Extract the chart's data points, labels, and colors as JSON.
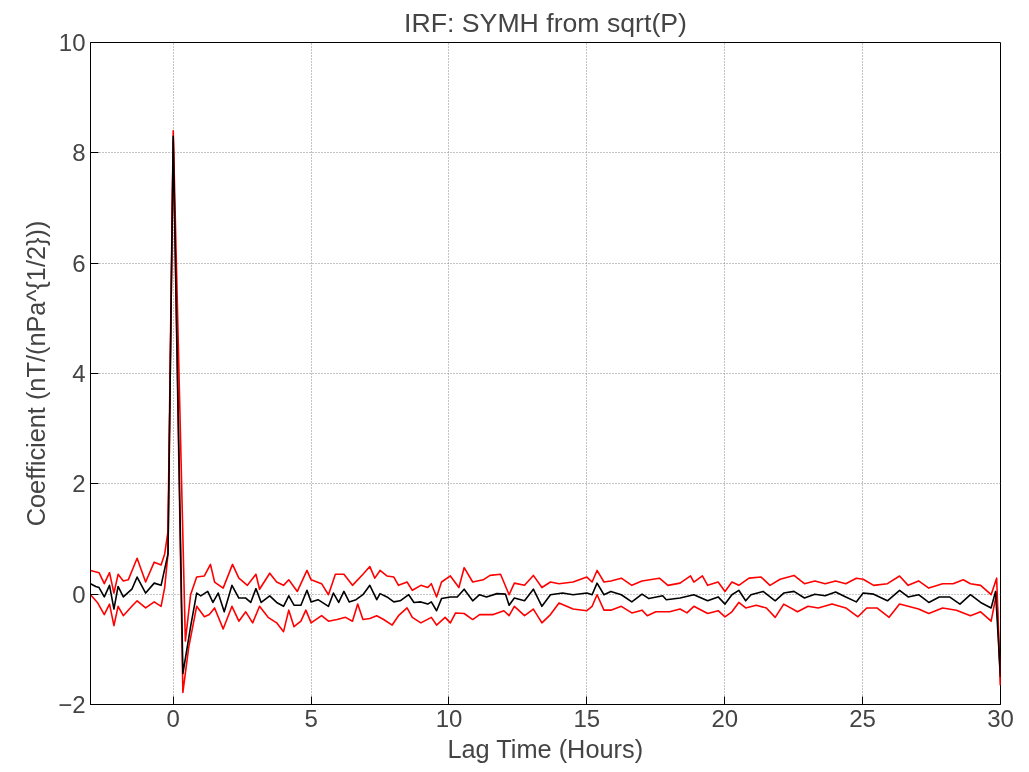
{
  "chart_data": {
    "type": "line",
    "title": "IRF: SYMH from sqrt(P)",
    "xlabel": "Lag Time (Hours)",
    "ylabel": "Coefficient (nT/(nPa^{1/2}))",
    "xlim": [
      -3,
      30
    ],
    "xticks": [
      0,
      5,
      10,
      15,
      20,
      25,
      30
    ],
    "ylim": [
      -2,
      10
    ],
    "yticks": [
      -2,
      0,
      2,
      4,
      6,
      8,
      10
    ],
    "grid": true,
    "marker": "none",
    "line_style": "solid",
    "series": [
      {
        "color": "#ff0000",
        "x": [
          -3,
          -2.69,
          -2.5,
          -2.31,
          -2.15,
          -2.0,
          -1.81,
          -1.63,
          -1.31,
          -1.0,
          -0.69,
          -0.44,
          -0.31,
          -0.19,
          0,
          0.44,
          0.63,
          0.85,
          1.13,
          1.35,
          1.5,
          1.81,
          2.15,
          2.38,
          2.69,
          3.0,
          3.13,
          3.5,
          3.75,
          4.0,
          4.19,
          4.5,
          4.85,
          5.0,
          5.38,
          5.63,
          5.88,
          6.19,
          6.5,
          6.88,
          7.13,
          7.31,
          7.5,
          7.75,
          8.0,
          8.17,
          8.48,
          8.67,
          8.98,
          9.23,
          9.36,
          9.55,
          9.73,
          10.05,
          10.36,
          10.55,
          10.86,
          11.24,
          11.49,
          11.87,
          12.18,
          12.37,
          12.74,
          13.06,
          13.37,
          13.68,
          13.99,
          14.5,
          15.0,
          15.19,
          15.37,
          15.62,
          15.87,
          16.25,
          16.63,
          17.0,
          17.63,
          17.94,
          18.38,
          18.76,
          18.88,
          19.19,
          19.38,
          19.76,
          20.01,
          20.26,
          20.51,
          20.88,
          21.32,
          21.64,
          22.01,
          22.51,
          22.89,
          23.27,
          23.64,
          24.02,
          24.39,
          24.77,
          25.02,
          25.4,
          25.9,
          26.34,
          26.65,
          27.03,
          27.4,
          27.9,
          28.28,
          28.65,
          28.91,
          29.28,
          29.66,
          29.86,
          30.0
        ],
        "values": [
          0.43,
          0.39,
          0.19,
          0.39,
          0.02,
          0.36,
          0.24,
          0.26,
          0.65,
          0.22,
          0.58,
          0.53,
          0.73,
          1.14,
          8.4,
          -0.85,
          -0.01,
          0.31,
          0.33,
          0.54,
          0.22,
          0.11,
          0.54,
          0.29,
          0.16,
          0.36,
          0.09,
          0.38,
          0.22,
          0.16,
          0.26,
          0.05,
          0.43,
          0.26,
          0.19,
          -0.01,
          0.36,
          0.36,
          0.16,
          0.36,
          0.5,
          0.29,
          0.43,
          0.33,
          0.31,
          0.16,
          0.22,
          0.07,
          0.16,
          0.12,
          0.19,
          -0.05,
          0.22,
          0.33,
          0.12,
          0.48,
          0.22,
          0.26,
          0.34,
          0.36,
          -0.01,
          0.2,
          0.16,
          0.34,
          0.12,
          0.22,
          0.19,
          0.22,
          0.31,
          0.22,
          0.43,
          0.22,
          0.24,
          0.29,
          0.16,
          0.24,
          0.29,
          0.16,
          0.2,
          0.33,
          0.22,
          0.33,
          0.16,
          0.22,
          0.05,
          0.22,
          0.16,
          0.29,
          0.31,
          0.16,
          0.27,
          0.34,
          0.19,
          0.24,
          0.19,
          0.24,
          0.19,
          0.29,
          0.27,
          0.16,
          0.19,
          0.33,
          0.16,
          0.24,
          0.11,
          0.19,
          0.19,
          0.26,
          0.19,
          0.16,
          -0.01,
          0.29,
          -1.65
        ]
      },
      {
        "color": "#ff0000",
        "x": [
          -3,
          -2.75,
          -2.5,
          -2.31,
          -2.15,
          -2.0,
          -1.81,
          -1.5,
          -1.31,
          -1.0,
          -0.69,
          -0.44,
          -0.31,
          -0.19,
          0,
          0.35,
          0.56,
          0.85,
          1.13,
          1.31,
          1.5,
          1.81,
          2.13,
          2.38,
          2.63,
          2.88,
          3.13,
          3.44,
          3.75,
          4.0,
          4.19,
          4.38,
          4.63,
          4.81,
          5.0,
          5.38,
          5.63,
          5.94,
          6.25,
          6.5,
          6.69,
          6.88,
          7.13,
          7.38,
          7.63,
          7.94,
          8.17,
          8.48,
          8.67,
          8.98,
          9.36,
          9.55,
          9.86,
          10.05,
          10.24,
          10.55,
          10.86,
          11.11,
          11.61,
          11.99,
          12.18,
          12.37,
          12.74,
          13.06,
          13.37,
          13.68,
          13.99,
          14.5,
          15.0,
          15.19,
          15.37,
          15.62,
          15.87,
          16.25,
          16.63,
          17.0,
          17.19,
          17.5,
          18.0,
          18.38,
          18.63,
          18.88,
          19.38,
          19.76,
          20.01,
          20.26,
          20.51,
          20.76,
          21.14,
          21.51,
          21.83,
          22.14,
          22.64,
          23.02,
          23.39,
          23.89,
          24.39,
          24.83,
          25.15,
          25.52,
          25.96,
          26.34,
          26.65,
          27.03,
          27.4,
          27.9,
          28.4,
          28.91,
          29.28,
          29.66,
          29.86,
          30.0
        ],
        "values": [
          -0.01,
          -0.15,
          -0.37,
          -0.18,
          -0.57,
          -0.22,
          -0.39,
          -0.22,
          -0.12,
          -0.25,
          -0.14,
          -0.22,
          0.12,
          0.73,
          8.2,
          -1.78,
          -0.97,
          -0.22,
          -0.41,
          -0.37,
          -0.25,
          -0.63,
          -0.22,
          -0.49,
          -0.32,
          -0.52,
          -0.22,
          -0.42,
          -0.52,
          -0.68,
          -0.29,
          -0.59,
          -0.49,
          -0.29,
          -0.52,
          -0.39,
          -0.49,
          -0.46,
          -0.42,
          -0.49,
          -0.18,
          -0.46,
          -0.44,
          -0.39,
          -0.46,
          -0.56,
          -0.39,
          -0.25,
          -0.42,
          -0.52,
          -0.42,
          -0.56,
          -0.42,
          -0.52,
          -0.34,
          -0.35,
          -0.46,
          -0.37,
          -0.37,
          -0.3,
          -0.39,
          -0.22,
          -0.39,
          -0.27,
          -0.52,
          -0.37,
          -0.16,
          -0.27,
          -0.3,
          -0.22,
          -0.01,
          -0.29,
          -0.29,
          -0.22,
          -0.34,
          -0.29,
          -0.39,
          -0.32,
          -0.32,
          -0.27,
          -0.34,
          -0.22,
          -0.35,
          -0.3,
          -0.41,
          -0.32,
          -0.15,
          -0.25,
          -0.2,
          -0.25,
          -0.42,
          -0.18,
          -0.32,
          -0.22,
          -0.25,
          -0.18,
          -0.25,
          -0.41,
          -0.25,
          -0.25,
          -0.42,
          -0.18,
          -0.22,
          -0.27,
          -0.35,
          -0.25,
          -0.29,
          -0.39,
          -0.32,
          -0.49,
          0.02,
          -1.65
        ]
      },
      {
        "color": "#000000",
        "x": [
          -3,
          -2.81,
          -2.69,
          -2.5,
          -2.31,
          -2.15,
          -2.0,
          -1.81,
          -1.5,
          -1.31,
          -1.0,
          -0.69,
          -0.44,
          -0.19,
          0,
          0.35,
          0.63,
          0.85,
          1.0,
          1.25,
          1.44,
          1.63,
          1.85,
          2.13,
          2.38,
          2.63,
          2.81,
          3.0,
          3.19,
          3.5,
          3.75,
          4.0,
          4.19,
          4.38,
          4.63,
          4.85,
          5.0,
          5.25,
          5.63,
          5.81,
          6.0,
          6.19,
          6.38,
          6.63,
          6.88,
          7.13,
          7.38,
          7.5,
          7.75,
          8.0,
          8.23,
          8.54,
          8.73,
          8.98,
          9.23,
          9.36,
          9.55,
          9.73,
          10.05,
          10.3,
          10.55,
          10.86,
          11.11,
          11.36,
          11.74,
          12.05,
          12.18,
          12.37,
          12.74,
          13.06,
          13.37,
          13.68,
          14.12,
          14.5,
          15.0,
          15.19,
          15.37,
          15.62,
          15.87,
          16.25,
          16.63,
          17.0,
          17.25,
          17.75,
          17.88,
          18.38,
          18.88,
          19.38,
          19.76,
          20.01,
          20.26,
          20.51,
          20.76,
          20.95,
          21.39,
          21.83,
          22.14,
          22.51,
          22.89,
          23.27,
          23.64,
          24.02,
          24.39,
          24.77,
          25.02,
          25.4,
          25.9,
          26.34,
          26.65,
          27.03,
          27.4,
          27.78,
          28.15,
          28.53,
          28.91,
          29.28,
          29.66,
          29.82,
          30.0
        ],
        "values": [
          0.19,
          0.14,
          0.12,
          -0.05,
          0.16,
          -0.27,
          0.14,
          -0.05,
          0.09,
          0.31,
          0.02,
          0.2,
          0.16,
          0.73,
          8.3,
          -1.44,
          -0.59,
          0.02,
          -0.03,
          0.05,
          -0.15,
          0.02,
          -0.32,
          0.16,
          -0.07,
          -0.07,
          -0.15,
          0.1,
          -0.15,
          -0.03,
          -0.15,
          -0.22,
          -0.03,
          -0.2,
          -0.2,
          0.07,
          -0.14,
          -0.1,
          -0.22,
          0.02,
          -0.15,
          0.05,
          -0.14,
          -0.1,
          -0.01,
          0.16,
          -0.1,
          0.01,
          -0.05,
          -0.14,
          -0.12,
          -0.01,
          -0.15,
          -0.14,
          -0.18,
          -0.14,
          -0.3,
          -0.08,
          -0.05,
          -0.05,
          0.09,
          -0.12,
          -0.01,
          -0.05,
          0.01,
          0,
          -0.2,
          -0.07,
          -0.12,
          0.09,
          -0.22,
          -0.01,
          0.02,
          -0.01,
          0.02,
          -0.01,
          0.2,
          -0.01,
          0.05,
          -0.01,
          -0.14,
          0,
          -0.08,
          -0.03,
          -0.1,
          -0.07,
          -0.01,
          -0.12,
          -0.05,
          -0.18,
          -0.01,
          0.07,
          -0.12,
          -0.01,
          0.05,
          -0.12,
          0.02,
          0.05,
          -0.07,
          0,
          -0.03,
          0.04,
          -0.05,
          -0.14,
          0.02,
          0,
          -0.12,
          0.07,
          -0.05,
          -0.01,
          -0.15,
          -0.05,
          -0.05,
          -0.18,
          -0.01,
          -0.15,
          -0.25,
          0.05,
          -1.5
        ]
      }
    ]
  }
}
